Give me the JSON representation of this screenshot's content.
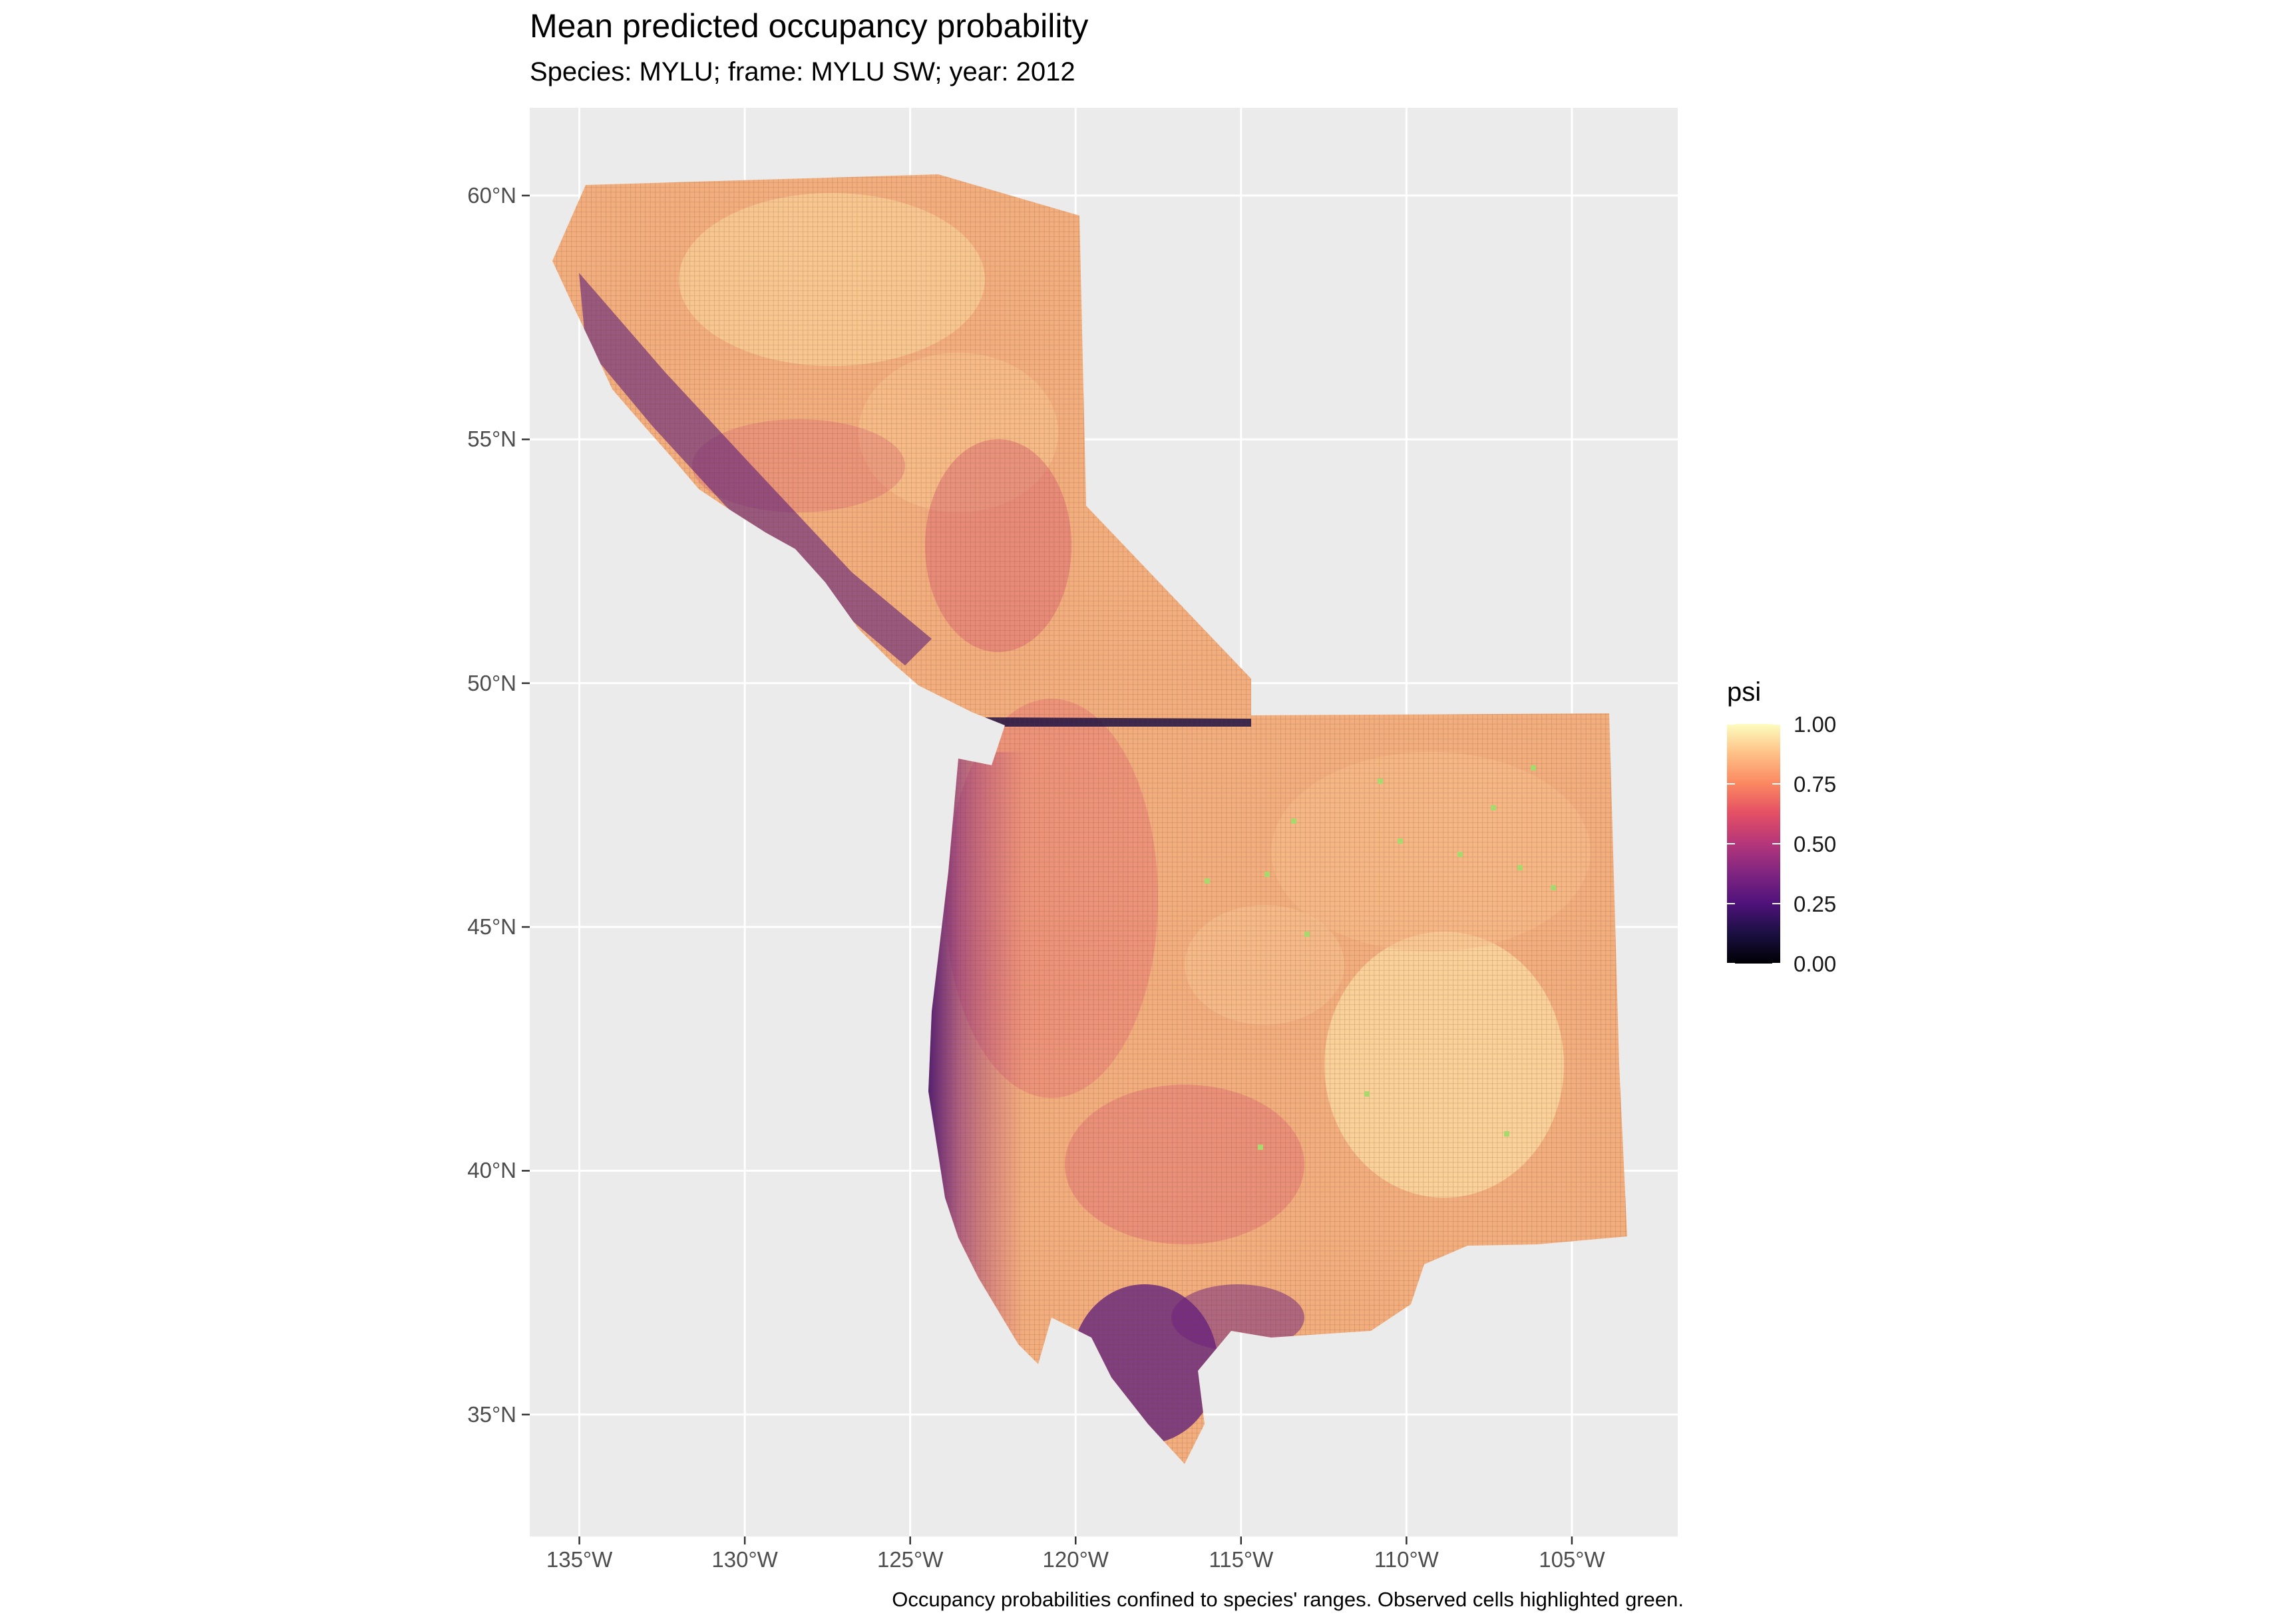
{
  "title": "Mean predicted occupancy probability",
  "subtitle": "Species: MYLU; frame: MYLU SW; year: 2012",
  "caption": "Occupancy probabilities confined to species' ranges. Observed cells highlighted green.",
  "map": {
    "x_ticks": [
      "135°W",
      "130°W",
      "125°W",
      "120°W",
      "115°W",
      "110°W",
      "105°W"
    ],
    "y_ticks": [
      "60°N",
      "55°N",
      "50°N",
      "45°N",
      "40°N",
      "35°N"
    ],
    "x_tick_values": [
      -135,
      -130,
      -125,
      -120,
      -115,
      -110,
      -105
    ],
    "y_tick_values": [
      60,
      55,
      50,
      45,
      40,
      35
    ],
    "lon_range": [
      -136.5,
      -101.8
    ],
    "lat_range": [
      32.5,
      61.8
    ],
    "panel_background": "#ebebeb",
    "grid_color": "#ffffff",
    "observed_cell_color": "#a9d86e"
  },
  "legend": {
    "title": "psi",
    "labels": [
      "1.00",
      "0.75",
      "0.50",
      "0.25",
      "0.00"
    ],
    "colormap": "magma",
    "range": [
      0,
      1
    ]
  }
}
